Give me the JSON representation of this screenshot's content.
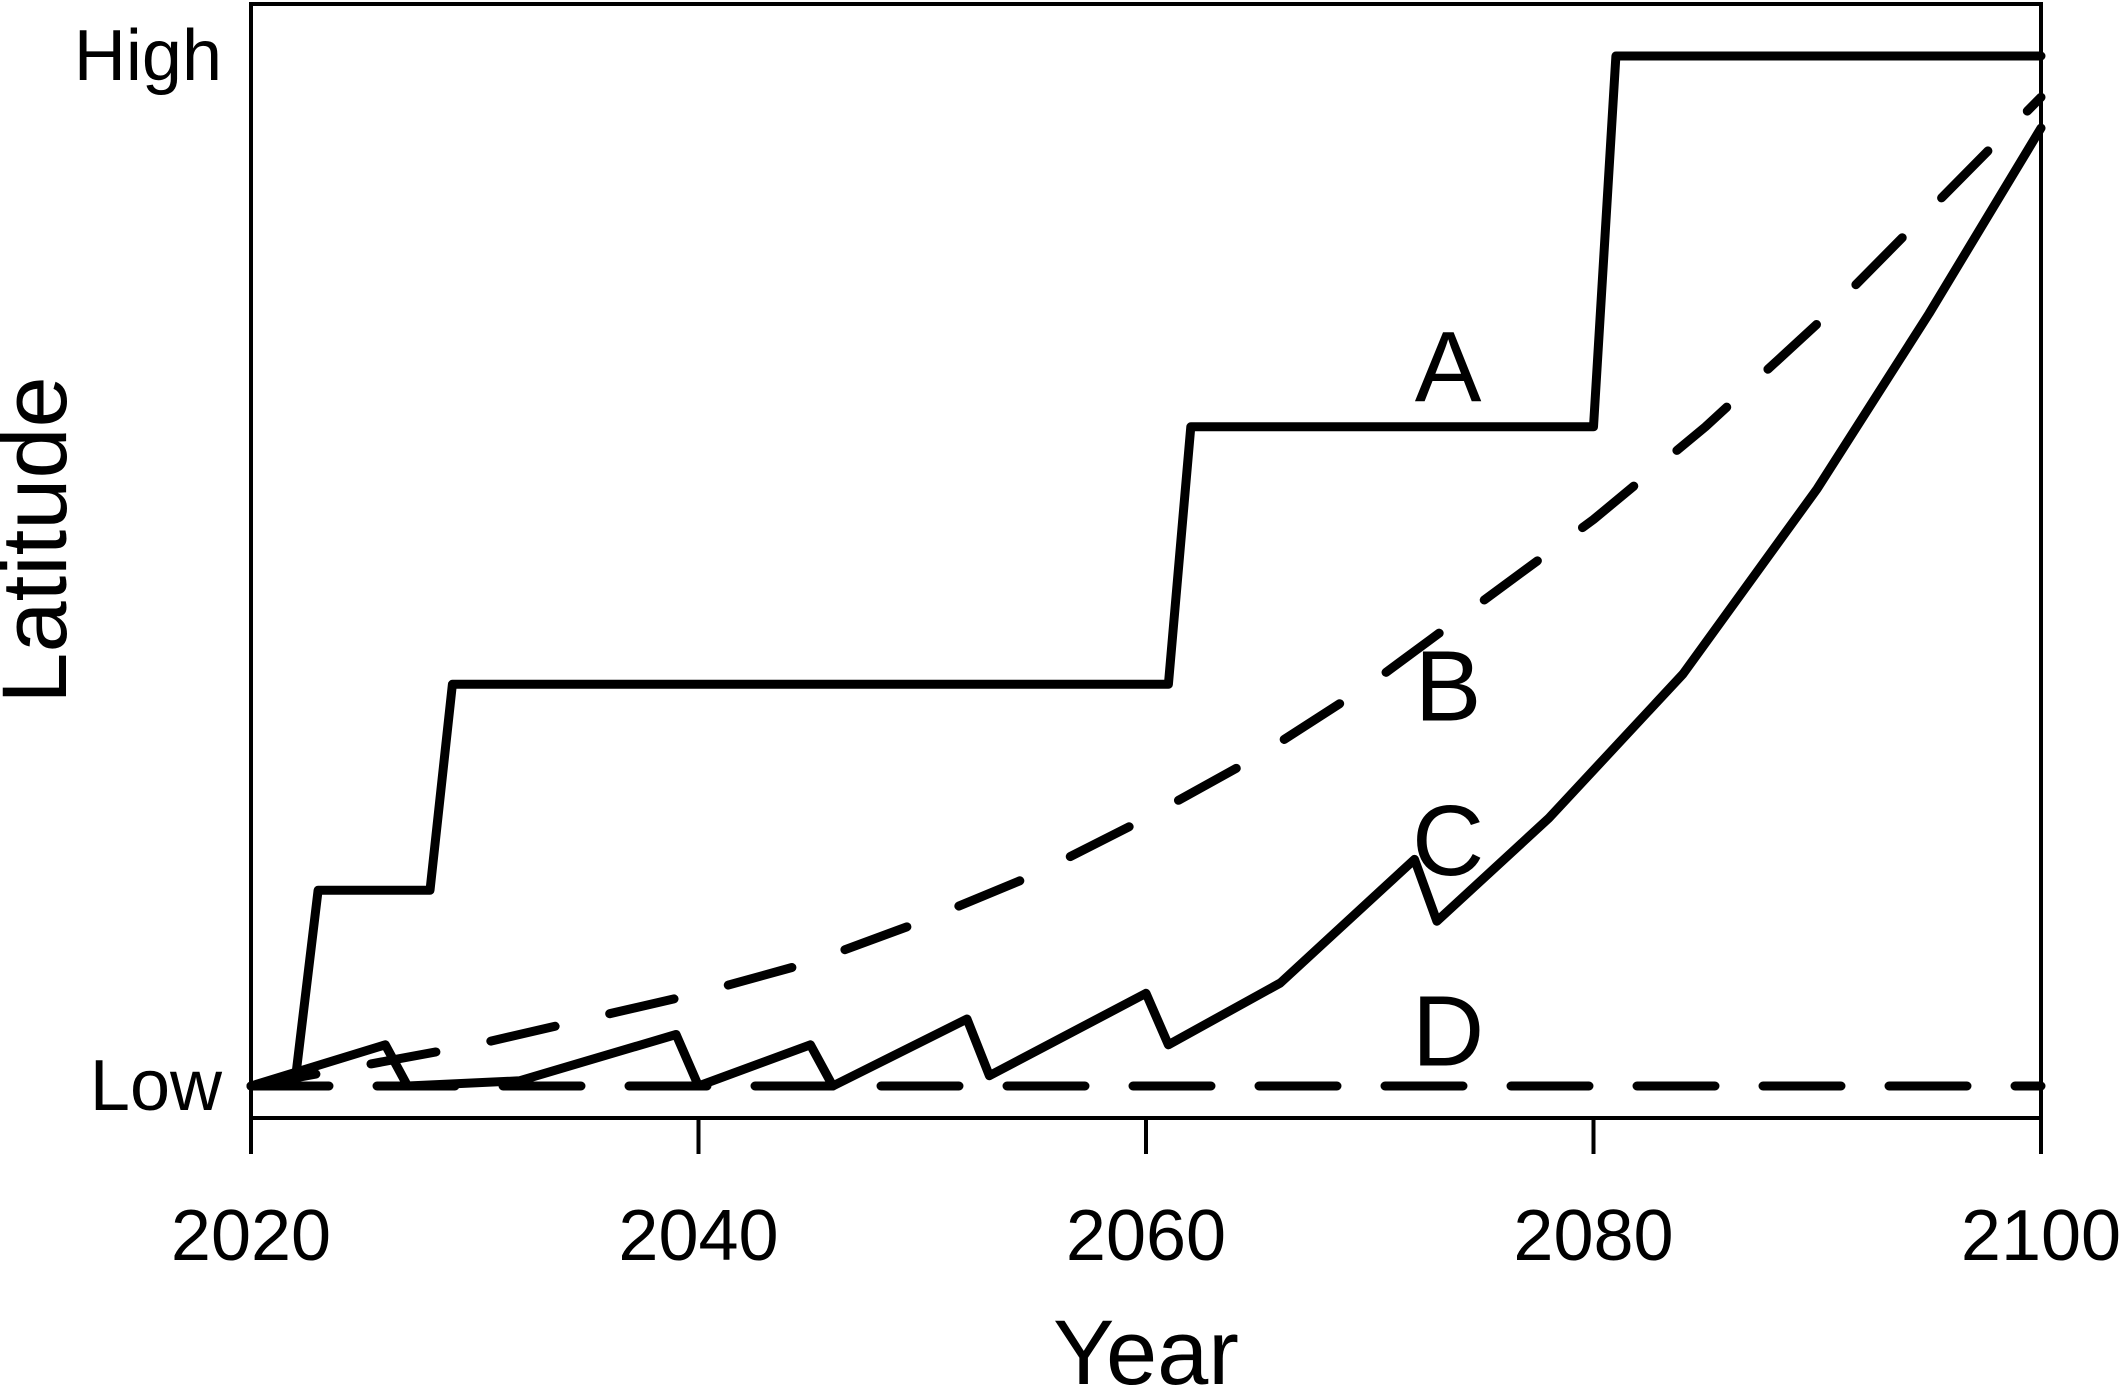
{
  "chart_data": {
    "type": "line",
    "title": "",
    "xlabel": "Year",
    "ylabel": "Latitude",
    "xlim": [
      2020,
      2100
    ],
    "ylim": [
      0,
      1
    ],
    "x_ticks": [
      2020,
      2040,
      2060,
      2080,
      2100
    ],
    "y_ticks": [
      {
        "value": 0,
        "label": "Low"
      },
      {
        "value": 1,
        "label": "High"
      }
    ],
    "grid": false,
    "legend": "none",
    "line_color": "#000000",
    "series": [
      {
        "name": "A",
        "style": "solid",
        "label_at": {
          "x": 2073.5,
          "y": 0.7
        },
        "points": [
          [
            2022,
            0.01
          ],
          [
            2023,
            0.19
          ],
          [
            2028,
            0.19
          ],
          [
            2029,
            0.39
          ],
          [
            2061,
            0.39
          ],
          [
            2062,
            0.64
          ],
          [
            2080,
            0.64
          ],
          [
            2081,
            1.0
          ],
          [
            2100,
            1.0
          ]
        ]
      },
      {
        "name": "B",
        "style": "dashed",
        "label_at": {
          "x": 2073.5,
          "y": 0.39
        },
        "points": [
          [
            2020,
            0.0
          ],
          [
            2025,
            0.02
          ],
          [
            2030,
            0.04
          ],
          [
            2035,
            0.065
          ],
          [
            2040,
            0.09
          ],
          [
            2045,
            0.12
          ],
          [
            2050,
            0.16
          ],
          [
            2055,
            0.205
          ],
          [
            2060,
            0.26
          ],
          [
            2065,
            0.32
          ],
          [
            2070,
            0.39
          ],
          [
            2075,
            0.47
          ],
          [
            2080,
            0.55
          ],
          [
            2085,
            0.64
          ],
          [
            2090,
            0.74
          ],
          [
            2095,
            0.85
          ],
          [
            2100,
            0.96
          ]
        ]
      },
      {
        "name": "C",
        "style": "solid",
        "label_at": {
          "x": 2073.5,
          "y": 0.24
        },
        "points": [
          [
            2020,
            0.0
          ],
          [
            2026,
            0.04
          ],
          [
            2027,
            0.0
          ],
          [
            2032,
            0.005
          ],
          [
            2039,
            0.05
          ],
          [
            2040,
            0.0
          ],
          [
            2045,
            0.04
          ],
          [
            2046,
            0.0
          ],
          [
            2052,
            0.065
          ],
          [
            2053,
            0.01
          ],
          [
            2060,
            0.09
          ],
          [
            2061,
            0.04
          ],
          [
            2066,
            0.1
          ],
          [
            2072,
            0.22
          ],
          [
            2073,
            0.16
          ],
          [
            2078,
            0.26
          ],
          [
            2084,
            0.4
          ],
          [
            2090,
            0.58
          ],
          [
            2095,
            0.75
          ],
          [
            2100,
            0.93
          ]
        ]
      },
      {
        "name": "D",
        "style": "dashed",
        "label_at": {
          "x": 2073.5,
          "y": 0.055
        },
        "points": [
          [
            2020,
            0.0
          ],
          [
            2100,
            0.0
          ]
        ]
      }
    ]
  }
}
